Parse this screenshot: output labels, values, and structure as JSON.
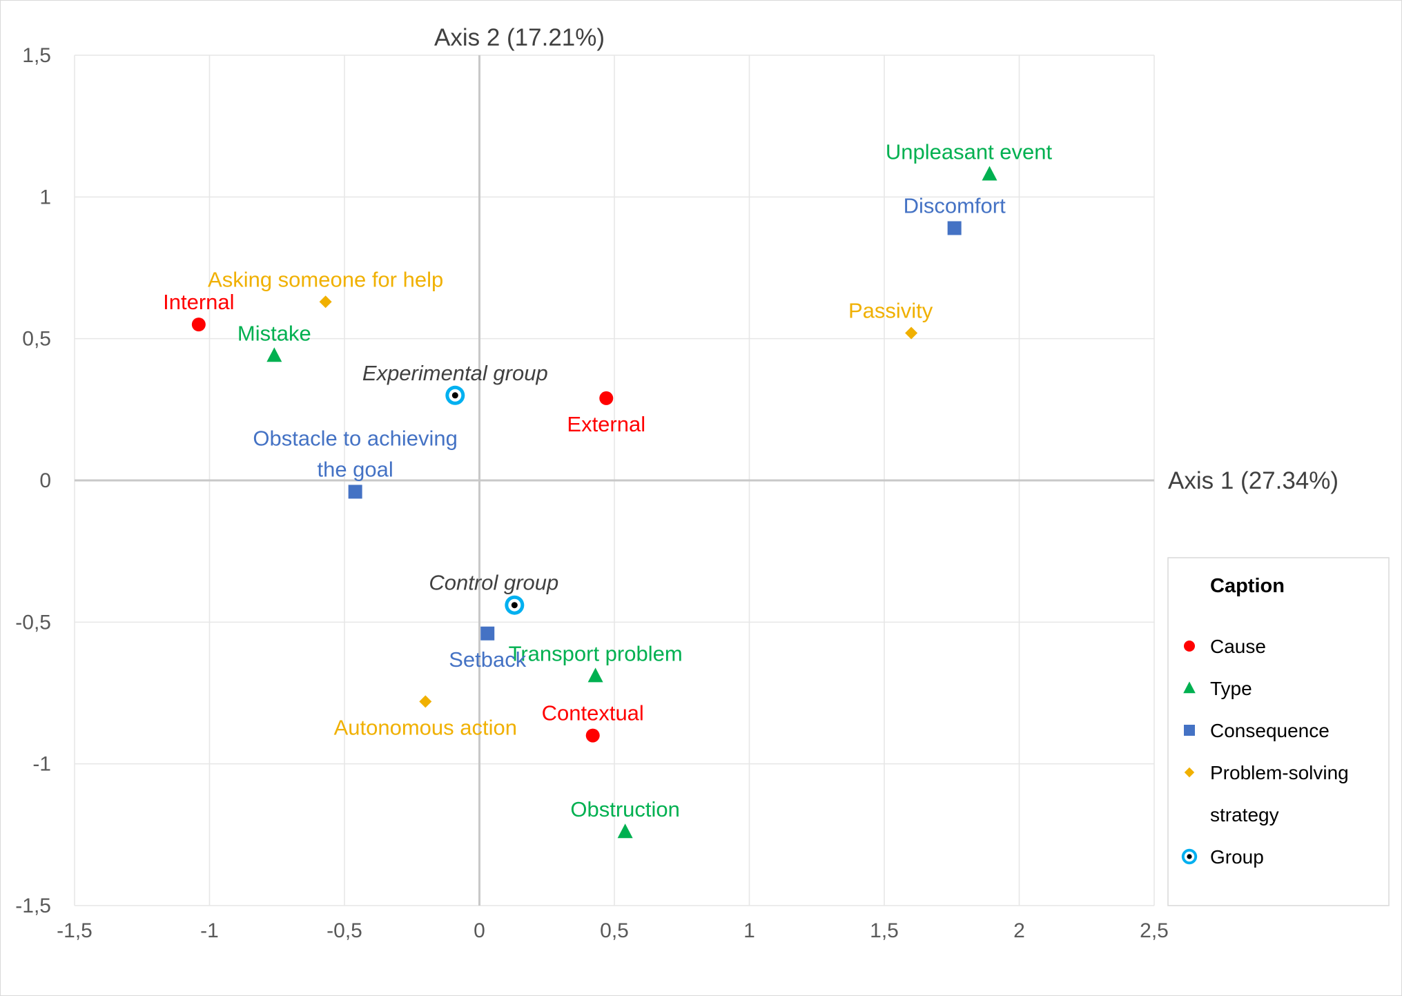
{
  "chart_data": {
    "type": "scatter",
    "xlim": [
      -1.5,
      2.5
    ],
    "ylim": [
      -1.5,
      1.5
    ],
    "x_ticks": [
      -1.5,
      -1,
      -0.5,
      0,
      0.5,
      1,
      1.5,
      2,
      2.5
    ],
    "y_ticks": [
      -1.5,
      -1,
      -0.5,
      0,
      0.5,
      1,
      1.5
    ],
    "x_tick_labels": [
      "-1,5",
      "-1",
      "-0,5",
      "0",
      "0,5",
      "1",
      "1,5",
      "2",
      "2,5"
    ],
    "y_tick_labels": [
      "-1,5",
      "-1",
      "-0,5",
      "0",
      "0,5",
      "1",
      "1,5"
    ],
    "xlabel": "Axis 1 (27.34%)",
    "ylabel": "Axis 2 (17.21%)",
    "grid": true,
    "colors": {
      "Cause": "#ff0000",
      "Type": "#00b050",
      "Consequence": "#4472c4",
      "Problem-solving strategy": "#f0b000",
      "Group": "#00b0f0"
    },
    "markers": {
      "Cause": "circle",
      "Type": "triangle",
      "Consequence": "square",
      "Problem-solving strategy": "diamond",
      "Group": "ringed-dot"
    },
    "legend": {
      "title": "Caption",
      "position": "right",
      "entries": [
        {
          "series": "Cause",
          "lines": [
            "Cause"
          ]
        },
        {
          "series": "Type",
          "lines": [
            "Type"
          ]
        },
        {
          "series": "Consequence",
          "lines": [
            "Consequence"
          ]
        },
        {
          "series": "Problem-solving strategy",
          "lines": [
            "Problem-solving",
            "strategy"
          ]
        },
        {
          "series": "Group",
          "lines": [
            "Group"
          ]
        }
      ]
    },
    "series": [
      {
        "name": "Cause",
        "points": [
          {
            "label": "Internal",
            "x": -1.04,
            "y": 0.55,
            "label_pos": "above"
          },
          {
            "label": "External",
            "x": 0.47,
            "y": 0.29,
            "label_pos": "below"
          },
          {
            "label": "Contextual",
            "x": 0.42,
            "y": -0.9,
            "label_pos": "above"
          }
        ]
      },
      {
        "name": "Type",
        "points": [
          {
            "label": "Mistake",
            "x": -0.76,
            "y": 0.44,
            "label_pos": "above"
          },
          {
            "label": "Unpleasant event",
            "x": 1.89,
            "y": 1.08,
            "label_pos": "above-left"
          },
          {
            "label": "Transport problem",
            "x": 0.43,
            "y": -0.69,
            "label_pos": "above"
          },
          {
            "label": "Obstruction",
            "x": 0.54,
            "y": -1.24,
            "label_pos": "above"
          }
        ]
      },
      {
        "name": "Consequence",
        "points": [
          {
            "label": "Discomfort",
            "x": 1.76,
            "y": 0.89,
            "label_pos": "above"
          },
          {
            "label": "Obstacle to achieving the goal",
            "x": -0.46,
            "y": -0.04,
            "label_pos": "above"
          },
          {
            "label": "Setback",
            "x": 0.03,
            "y": -0.54,
            "label_pos": "below"
          }
        ]
      },
      {
        "name": "Problem-solving strategy",
        "points": [
          {
            "label": "Asking someone for help",
            "x": -0.57,
            "y": 0.63,
            "label_pos": "above"
          },
          {
            "label": "Passivity",
            "x": 1.6,
            "y": 0.52,
            "label_pos": "above-left"
          },
          {
            "label": "Autonomous action",
            "x": -0.2,
            "y": -0.78,
            "label_pos": "below"
          }
        ]
      },
      {
        "name": "Group",
        "points": [
          {
            "label": "Experimental group",
            "x": -0.09,
            "y": 0.3,
            "label_pos": "above"
          },
          {
            "label": "Control group",
            "x": 0.13,
            "y": -0.44,
            "label_pos": "above-left"
          }
        ]
      }
    ]
  }
}
